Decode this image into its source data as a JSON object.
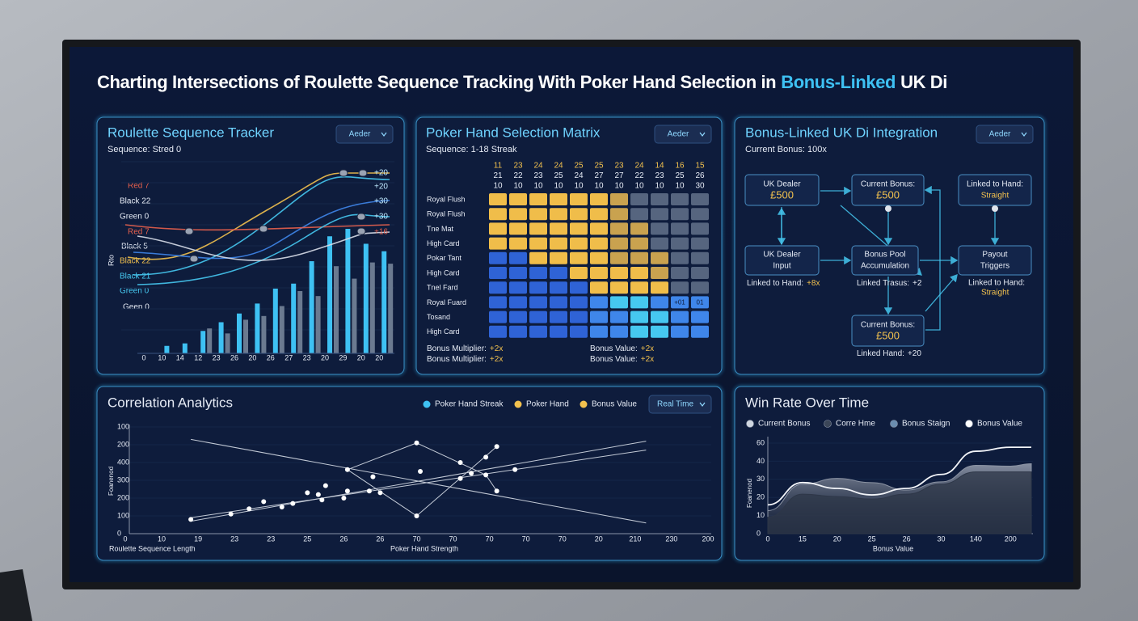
{
  "title": {
    "text": "Charting Intersections of Roulette Sequence Tracking With Poker Hand Selection in",
    "highlight": "Bonus-Linked",
    "tail": "UK Di"
  },
  "roulette": {
    "title": "Roulette Sequence Tracker",
    "button": "Aeder",
    "subtitle": "Sequence: Stred 0",
    "y_label": "Rto",
    "labels": [
      {
        "text": "Red 7",
        "color": "#e8604c"
      },
      {
        "text": "Black 22",
        "color": "#e6ebf5"
      },
      {
        "text": "Green 0",
        "color": "#e6ebf5"
      },
      {
        "text": "Red 7",
        "color": "#e8604c"
      },
      {
        "text": "Black 5",
        "color": "#e6ebf5"
      },
      {
        "text": "Black 22",
        "color": "#f2c14e"
      },
      {
        "text": "Black 21",
        "color": "#46c8f0"
      },
      {
        "text": "Green 0",
        "color": "#46c8f0"
      },
      {
        "text": "Geen 0",
        "color": "#e6ebf5"
      }
    ],
    "right_labels": [
      {
        "text": "+20",
        "color": "#bfeaff"
      },
      {
        "text": "+20",
        "color": "#bfeaff"
      },
      {
        "text": "+30",
        "color": "#bfeaff"
      },
      {
        "text": "+30",
        "color": "#bfeaff"
      },
      {
        "text": "+16",
        "color": "#e8604c"
      }
    ],
    "categories": [
      "0",
      "10",
      "14",
      "12",
      "23",
      "26",
      "20",
      "26",
      "27",
      "23",
      "20",
      "29",
      "20",
      "20"
    ],
    "ylim": [
      0,
      100
    ],
    "series": [
      {
        "color": "#3ec1f3",
        "values": [
          0,
          6,
          8,
          18,
          25,
          32,
          40,
          52,
          56,
          74,
          94,
          100,
          88,
          82
        ]
      },
      {
        "color": "#6b7a90",
        "values": [
          0,
          0,
          0,
          20,
          16,
          27,
          30,
          38,
          50,
          46,
          70,
          60,
          73,
          72
        ]
      }
    ]
  },
  "poker": {
    "title": "Poker Hand Selection Matrix",
    "button": "Aeder",
    "subtitle": "Sequence: 1-18 Streak",
    "header_rows": [
      [
        "11",
        "23",
        "24",
        "24",
        "25",
        "25",
        "23",
        "24",
        "14",
        "16",
        "15"
      ],
      [
        "21",
        "22",
        "23",
        "25",
        "24",
        "27",
        "27",
        "22",
        "23",
        "25",
        "26"
      ],
      [
        "10",
        "10",
        "10",
        "10",
        "10",
        "10",
        "10",
        "10",
        "10",
        "10",
        "30"
      ]
    ],
    "header_colors": [
      "#f2c14e",
      "#e6ebf5",
      "#e6ebf5"
    ],
    "rows": [
      "Royal Flush",
      "Royal Flush",
      "Tne Mat",
      "High Card",
      "Pokar Tant",
      "High Card",
      "Tnel Fard",
      "Royal Fuard",
      "Tosand",
      "High Card"
    ],
    "level_colors": [
      "#2f63d6",
      "#3f86ea",
      "#46c8f0",
      "#56657f",
      "#c9a24f",
      "#f0bd4a"
    ],
    "levels": [
      [
        5,
        5,
        5,
        5,
        5,
        5,
        4,
        3,
        3,
        3,
        3
      ],
      [
        5,
        5,
        5,
        5,
        5,
        5,
        4,
        3,
        3,
        3,
        3
      ],
      [
        5,
        5,
        5,
        5,
        5,
        5,
        4,
        4,
        3,
        3,
        3
      ],
      [
        5,
        5,
        5,
        5,
        5,
        5,
        4,
        4,
        3,
        3,
        3
      ],
      [
        0,
        0,
        5,
        5,
        5,
        5,
        4,
        4,
        4,
        3,
        3
      ],
      [
        0,
        0,
        0,
        0,
        5,
        5,
        5,
        5,
        4,
        3,
        3
      ],
      [
        0,
        0,
        0,
        0,
        0,
        5,
        5,
        5,
        5,
        3,
        3
      ],
      [
        0,
        0,
        0,
        0,
        0,
        1,
        2,
        2,
        1,
        1,
        1
      ],
      [
        0,
        0,
        0,
        0,
        0,
        1,
        1,
        2,
        2,
        1,
        1
      ],
      [
        0,
        0,
        0,
        0,
        0,
        1,
        1,
        2,
        2,
        1,
        1
      ]
    ],
    "cell_labels": [
      {
        "row": 7,
        "col": 9,
        "text": "+01"
      },
      {
        "row": 7,
        "col": 10,
        "text": "01"
      }
    ],
    "footer": [
      {
        "text": "Bonus Multiplier:",
        "value": "+2x"
      },
      {
        "text": "Bonus Value:",
        "value": "+2x"
      },
      {
        "text": "Bonus Multiplier:",
        "value": "+2x"
      },
      {
        "text": "Bonus Value:",
        "value": "+2x"
      }
    ]
  },
  "bonus": {
    "title": "Bonus-Linked UK Di Integration",
    "button": "Aeder",
    "subtitle": "Current Bonus: 100x",
    "nodes": [
      {
        "label": "UK Dealer",
        "value": "£500"
      },
      {
        "label": "Current Bonus:",
        "value": "£500"
      },
      {
        "label": "Linked to Hand:",
        "value": "Straight"
      },
      {
        "label": "UK Dealer",
        "value": "Input"
      },
      {
        "label": "Bonus Pool",
        "value": "Accumulation"
      },
      {
        "label": "Payout",
        "value": "Triggers"
      },
      {
        "label": "Current Bonus:",
        "value": "£500"
      }
    ],
    "captions": [
      {
        "text": "Linked to Hand:",
        "value": "+8x"
      },
      {
        "text": "Linked Trasus:",
        "value": "+2"
      },
      {
        "text": "Linked to Hand:",
        "value": "Straight"
      },
      {
        "text": "Linked Hand:",
        "value": "+20"
      }
    ]
  },
  "correlation": {
    "title": "Correlation Analytics",
    "button": "Real Time",
    "legend": [
      {
        "name": "Poker Hand Streak",
        "color": "#3ec1f3"
      },
      {
        "name": "Poker Hand",
        "color": "#f2c14e"
      },
      {
        "name": "Bonus Value",
        "color": "#f2c14e"
      }
    ],
    "y_label": "Foanenod",
    "x_label": "Roulette Sequence Length",
    "x_label2": "Poker Hand Strength",
    "y_labels": [
      "0",
      "100",
      "200",
      "300",
      "400",
      "200",
      "100"
    ],
    "x_labels": [
      "0",
      "10",
      "19",
      "23",
      "23",
      "25",
      "26",
      "26",
      "70",
      "70",
      "70",
      "70",
      "70",
      "20",
      "210",
      "230",
      "200"
    ],
    "xlim": [
      0,
      16
    ],
    "ylim": [
      0,
      6
    ],
    "points": {
      "x": [
        1.8,
        2.9,
        3.4,
        3.8,
        4.3,
        4.6,
        5.0,
        5.3,
        5.5,
        5.4,
        6.0,
        6.1,
        6.1,
        6.7,
        7.0,
        6.8,
        8.0,
        8.1,
        8.0,
        9.2,
        9.2,
        9.5,
        9.9,
        9.9,
        10.2,
        10.2,
        10.7
      ],
      "y": [
        0.8,
        1.1,
        1.4,
        1.8,
        1.5,
        1.7,
        2.3,
        2.2,
        2.7,
        1.9,
        2.0,
        3.6,
        2.4,
        2.4,
        2.3,
        3.2,
        5.1,
        3.5,
        1.0,
        4.0,
        3.1,
        3.4,
        4.3,
        3.3,
        4.9,
        2.4,
        3.6
      ]
    },
    "lines": [
      {
        "x": [
          1.8,
          14.3
        ],
        "y": [
          5.3,
          0.6
        ]
      },
      {
        "x": [
          1.8,
          14.3
        ],
        "y": [
          0.7,
          5.2
        ]
      },
      {
        "x": [
          1.8,
          14.3
        ],
        "y": [
          0.9,
          4.7
        ]
      },
      {
        "x": [
          6.1,
          8.0,
          9.9,
          10.2
        ],
        "y": [
          3.6,
          5.1,
          3.3,
          2.4
        ]
      },
      {
        "x": [
          6.1,
          8.0,
          10.2
        ],
        "y": [
          3.6,
          1.0,
          4.9
        ]
      }
    ]
  },
  "winrate": {
    "title": "Win Rate Over Time",
    "y_label": "Foanenod",
    "x_label": "Bonus Value",
    "legend": [
      {
        "name": "Current Bonus",
        "color": "#cfd6e0"
      },
      {
        "name": "Corre Hme",
        "color": "#3b4658"
      },
      {
        "name": "Bonus Staign",
        "color": "#6b8db0"
      },
      {
        "name": "Bonus Value",
        "color": "#ffffff"
      }
    ],
    "y_labels": [
      "0",
      "10",
      "20",
      "30",
      "40",
      "60"
    ],
    "x_labels": [
      "0",
      "15",
      "20",
      "25",
      "26",
      "30",
      "140",
      "200"
    ],
    "xlim": [
      0,
      7.6
    ],
    "ylim": [
      0,
      50
    ],
    "x": [
      0,
      1,
      2,
      3,
      4,
      5,
      6,
      7,
      7.6
    ],
    "series": [
      {
        "kind": "area",
        "color": "#8b93a3",
        "values": [
          12.7,
          27.3,
          30.5,
          28.2,
          24.1,
          28.6,
          37.7,
          37.3,
          38.6
        ]
      },
      {
        "kind": "area",
        "color": "#2e3748",
        "values": [
          9.1,
          21.8,
          20.5,
          19.1,
          21.8,
          27.3,
          34.1,
          34.1,
          34.1
        ]
      },
      {
        "kind": "line",
        "color": "#f2f4f8",
        "values": [
          15.9,
          28.2,
          25.0,
          21.4,
          25.0,
          32.7,
          45.5,
          47.7,
          47.7
        ]
      }
    ]
  }
}
